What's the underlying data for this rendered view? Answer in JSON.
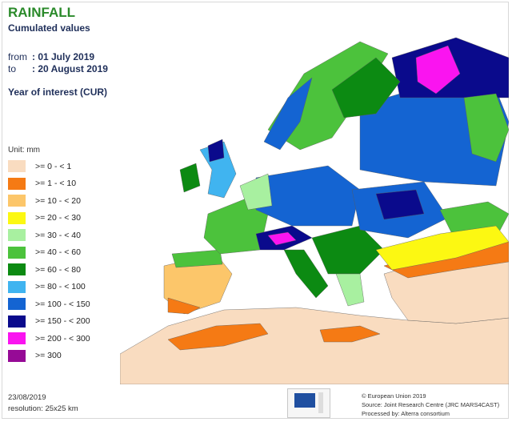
{
  "header": {
    "title": "RAINFALL",
    "subtitle": "Cumulated values",
    "from_key": "from",
    "from_value": ": 01 July 2019",
    "to_key": "to",
    "to_value": ": 20 August 2019",
    "year_of_interest": "Year of interest (CUR)"
  },
  "legend": {
    "unit": "Unit: mm",
    "classes": [
      {
        "label": ">= 0 - < 1",
        "color": "#f9dcc0"
      },
      {
        "label": ">= 1 - < 10",
        "color": "#f57a14"
      },
      {
        "label": ">= 10 - < 20",
        "color": "#fcc66a"
      },
      {
        "label": ">= 20 - < 30",
        "color": "#fcf812"
      },
      {
        "label": ">= 30 - < 40",
        "color": "#a8f0a0"
      },
      {
        "label": ">= 40 - < 60",
        "color": "#4cc23c"
      },
      {
        "label": ">= 60 - < 80",
        "color": "#0c8a12"
      },
      {
        "label": ">= 80 - < 100",
        "color": "#40b4f0"
      },
      {
        "label": ">= 100 - < 150",
        "color": "#1464d2"
      },
      {
        "label": ">= 150 - < 200",
        "color": "#0a0a8c"
      },
      {
        "label": ">= 200 - < 300",
        "color": "#fa14f0"
      },
      {
        "label": ">= 300",
        "color": "#960a96"
      }
    ]
  },
  "footer": {
    "date": "23/08/2019",
    "resolution": "resolution: 25x25 km",
    "copyright": "© European Union 2019",
    "source": "Source: Joint Research Centre (JRC MARS4CAST)",
    "processed": "Processed by: Alterra consortium"
  },
  "colors": {
    "sea": "#ffffff",
    "nodata": "#ececec",
    "title": "#2a8a2a"
  }
}
